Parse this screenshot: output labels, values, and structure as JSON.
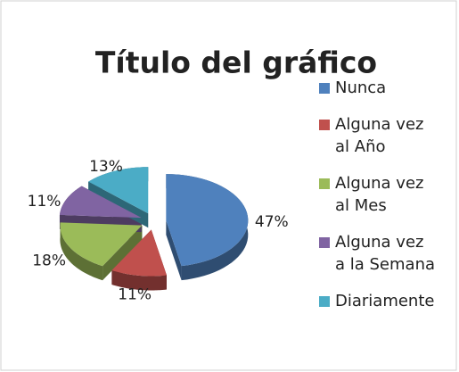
{
  "chart_data": {
    "type": "pie",
    "title": "Título del gráfico",
    "categories": [
      "Nunca",
      "Alguna vez\nal Año",
      "Alguna vez\nal Mes",
      "Alguna vez\na la Semana",
      "Diariamente"
    ],
    "values": [
      47,
      11,
      18,
      11,
      13
    ],
    "value_labels": [
      "47%",
      "11%",
      "18%",
      "11%",
      "13%"
    ],
    "colors": [
      "#4f81bd",
      "#c0504d",
      "#9bbb59",
      "#8064a2",
      "#4bacc6"
    ],
    "legend": "right"
  }
}
